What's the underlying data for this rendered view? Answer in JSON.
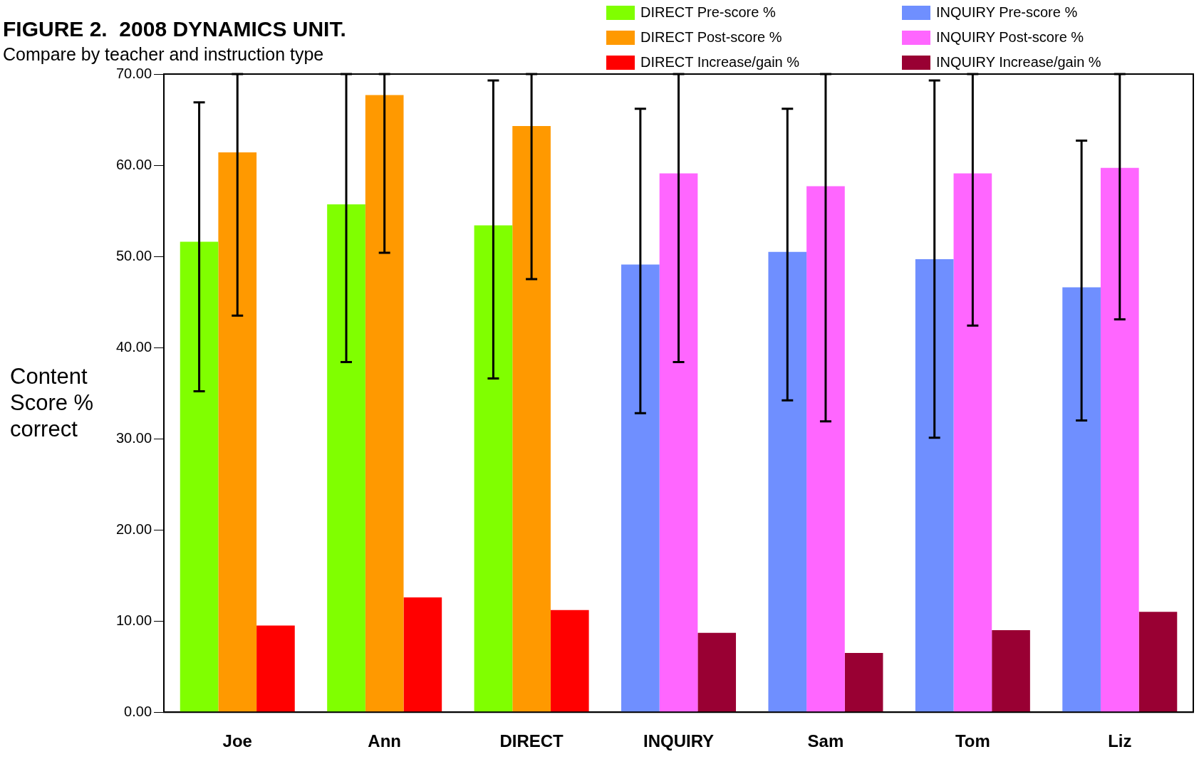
{
  "chart_data": {
    "type": "bar",
    "title": "FIGURE 2.  2008 DYNAMICS UNIT.",
    "subtitle": "Compare by teacher and instruction type",
    "ylabel": "Content Score % correct",
    "categories": [
      "Joe",
      "Ann",
      "DIRECT",
      "INQUIRY",
      "Sam",
      "Tom",
      "Liz"
    ],
    "series": [
      {
        "name": "DIRECT Pre-score %",
        "color": "#80ff00",
        "values": [
          51.6,
          55.7,
          53.4,
          null,
          null,
          null,
          null
        ],
        "errors": [
          [
            35.2,
            66.9
          ],
          [
            38.4,
            70
          ],
          [
            36.6,
            69.3
          ],
          null,
          null,
          null,
          null
        ]
      },
      {
        "name": "INQUIRY Pre-score %",
        "color": "#6f8fff",
        "values": [
          null,
          null,
          null,
          49.1,
          50.5,
          49.7,
          46.6
        ],
        "errors": [
          null,
          null,
          null,
          [
            32.8,
            66.2
          ],
          [
            34.2,
            66.2
          ],
          [
            30.1,
            69.3
          ],
          [
            32,
            62.7
          ]
        ]
      },
      {
        "name": "DIRECT Post-score %",
        "color": "#ff9900",
        "values": [
          61.4,
          67.7,
          64.3,
          null,
          null,
          null,
          null
        ],
        "errors": [
          [
            43.5,
            70
          ],
          [
            50.4,
            70
          ],
          [
            47.5,
            70
          ],
          null,
          null,
          null,
          null
        ]
      },
      {
        "name": "INQUIRY Post-score %",
        "color": "#ff66ff",
        "values": [
          null,
          null,
          null,
          59.1,
          57.7,
          59.1,
          59.7
        ],
        "errors": [
          null,
          null,
          null,
          [
            38.4,
            70
          ],
          [
            31.9,
            70
          ],
          [
            42.4,
            70
          ],
          [
            43.1,
            70
          ]
        ]
      },
      {
        "name": "DIRECT Increase/gain %",
        "color": "#ff0000",
        "values": [
          9.5,
          12.6,
          11.2,
          null,
          null,
          null,
          null
        ]
      },
      {
        "name": "INQUIRY Increase/gain %",
        "color": "#990033",
        "values": [
          null,
          null,
          null,
          8.7,
          6.5,
          9.0,
          11.0
        ]
      }
    ],
    "ylim": [
      0,
      70
    ],
    "yticks": [
      {
        "value": 0,
        "label": "0.00"
      },
      {
        "value": 10,
        "label": "10.00"
      },
      {
        "value": 20,
        "label": "20.00"
      },
      {
        "value": 30,
        "label": "30.00"
      },
      {
        "value": 40,
        "label": "40.00"
      },
      {
        "value": 50,
        "label": "50.00"
      },
      {
        "value": 60,
        "label": "60.00"
      },
      {
        "value": 70,
        "label": "70.00"
      }
    ],
    "grid": false,
    "legend": "top right"
  }
}
